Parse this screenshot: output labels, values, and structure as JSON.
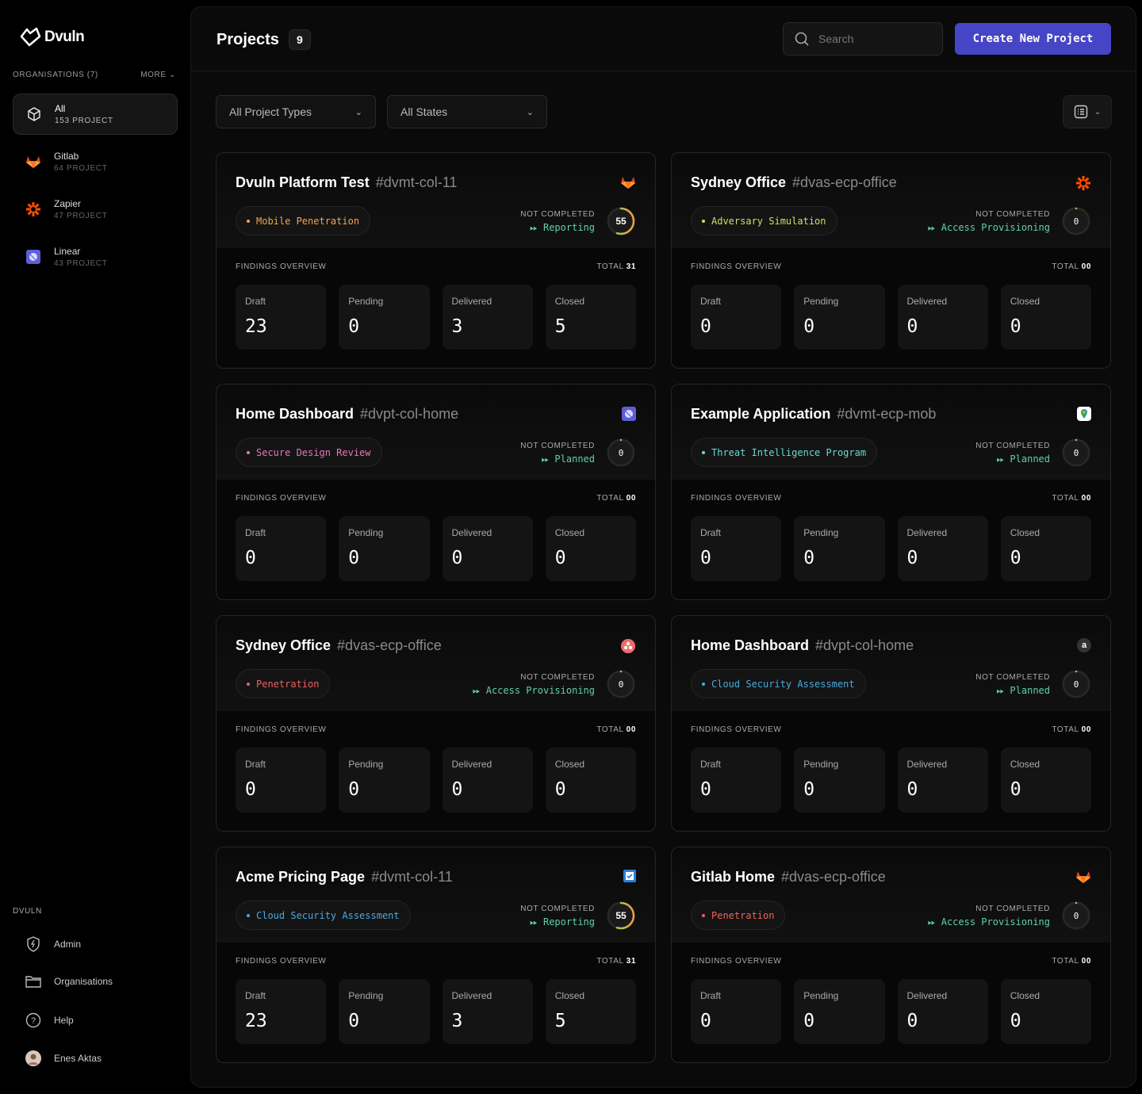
{
  "brand": {
    "name": "Dvuln"
  },
  "sidebar": {
    "org_header": "ORGANISATIONS (7)",
    "more": "MORE",
    "orgs": [
      {
        "name": "All",
        "count": "153 PROJECT",
        "icon": "cube-icon"
      },
      {
        "name": "Gitlab",
        "count": "64 PROJECT",
        "icon": "gitlab-icon"
      },
      {
        "name": "Zapier",
        "count": "47 PROJECT",
        "icon": "zapier-icon"
      },
      {
        "name": "Linear",
        "count": "43 PROJECT",
        "icon": "linear-icon"
      }
    ],
    "section": "DVULN",
    "nav": [
      {
        "label": "Admin",
        "icon": "shield-icon"
      },
      {
        "label": "Organisations",
        "icon": "folder-icon"
      },
      {
        "label": "Help",
        "icon": "help-icon"
      },
      {
        "label": "Enes Aktas",
        "icon": "avatar"
      }
    ]
  },
  "header": {
    "title": "Projects",
    "count": "9",
    "search_placeholder": "Search",
    "create_label": "Create New Project"
  },
  "filters": {
    "types": "All Project Types",
    "states": "All States"
  },
  "labels": {
    "not_completed": "NOT COMPLETED",
    "findings": "FINDINGS OVERVIEW",
    "total": "TOTAL",
    "draft": "Draft",
    "pending": "Pending",
    "delivered": "Delivered",
    "closed": "Closed"
  },
  "colors": {
    "accent": "#4545c6",
    "phase": "#5fd1b0"
  },
  "projects": [
    {
      "name": "Dvuln Platform Test",
      "slug": "#dvmt-col-11",
      "icon": "gitlab-icon",
      "tag": "Mobile Penetration",
      "tag_color": "#f0a650",
      "phase": "Reporting",
      "score": "55",
      "progress": 55,
      "total": "31",
      "draft": "23",
      "pending": "0",
      "delivered": "3",
      "closed": "5"
    },
    {
      "name": "Sydney Office",
      "slug": "#dvas-ecp-office",
      "icon": "zapier-icon",
      "tag": "Adversary Simulation",
      "tag_color": "#c6e26a",
      "phase": "Access Provisioning",
      "score": "0",
      "progress": 0,
      "total": "00",
      "draft": "0",
      "pending": "0",
      "delivered": "0",
      "closed": "0"
    },
    {
      "name": "Home Dashboard",
      "slug": "#dvpt-col-home",
      "icon": "linear-icon",
      "tag": "Secure Design Review",
      "tag_color": "#e678b8",
      "phase": "Planned",
      "score": "0",
      "progress": 0,
      "total": "00",
      "draft": "0",
      "pending": "0",
      "delivered": "0",
      "closed": "0"
    },
    {
      "name": "Example Application",
      "slug": "#dvmt-ecp-mob",
      "icon": "google-maps-icon",
      "tag": "Threat Intelligence Program",
      "tag_color": "#6ad8d0",
      "phase": "Planned",
      "score": "0",
      "progress": 0,
      "total": "00",
      "draft": "0",
      "pending": "0",
      "delivered": "0",
      "closed": "0"
    },
    {
      "name": "Sydney Office",
      "slug": "#dvas-ecp-office",
      "icon": "asana-icon",
      "tag": "Penetration",
      "tag_color": "#f0605a",
      "phase": "Access Provisioning",
      "score": "0",
      "progress": 0,
      "total": "00",
      "draft": "0",
      "pending": "0",
      "delivered": "0",
      "closed": "0"
    },
    {
      "name": "Home Dashboard",
      "slug": "#dvpt-col-home",
      "icon": "amazon-icon",
      "tag": "Cloud Security Assessment",
      "tag_color": "#4aa8e0",
      "phase": "Planned",
      "score": "0",
      "progress": 0,
      "total": "00",
      "draft": "0",
      "pending": "0",
      "delivered": "0",
      "closed": "0"
    },
    {
      "name": "Acme Pricing Page",
      "slug": "#dvmt-col-11",
      "icon": "checkbox-icon",
      "tag": "Cloud Security Assessment",
      "tag_color": "#4aa8e0",
      "phase": "Reporting",
      "score": "55",
      "progress": 55,
      "total": "31",
      "draft": "23",
      "pending": "0",
      "delivered": "3",
      "closed": "5"
    },
    {
      "name": "Gitlab Home",
      "slug": "#dvas-ecp-office",
      "icon": "gitlab-icon",
      "tag": "Penetration",
      "tag_color": "#f0605a",
      "phase": "Access Provisioning",
      "score": "0",
      "progress": 0,
      "total": "00",
      "draft": "0",
      "pending": "0",
      "delivered": "0",
      "closed": "0"
    }
  ]
}
